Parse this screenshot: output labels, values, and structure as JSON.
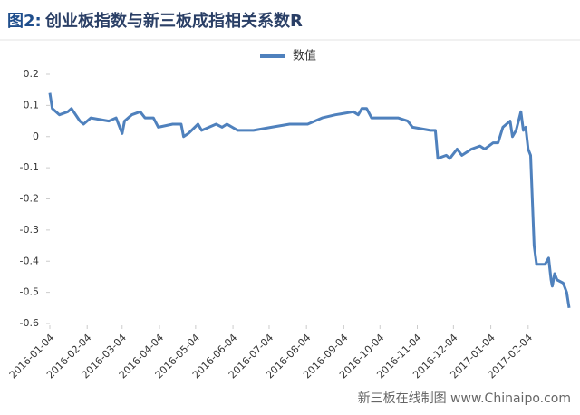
{
  "chart_data": {
    "type": "line",
    "figure_label": "图2:",
    "title": "创业板指数与新三板成指相关系数R",
    "source": "新三板在线制图 www.Chinaipo.com",
    "x": [
      "2016-01-04",
      "2016-01-06",
      "2016-01-12",
      "2016-01-19",
      "2016-01-22",
      "2016-01-29",
      "2016-02-01",
      "2016-02-07",
      "2016-02-22",
      "2016-02-28",
      "2016-03-04",
      "2016-03-06",
      "2016-03-12",
      "2016-03-19",
      "2016-03-23",
      "2016-03-30",
      "2016-04-03",
      "2016-04-15",
      "2016-04-22",
      "2016-04-24",
      "2016-04-28",
      "2016-05-06",
      "2016-05-09",
      "2016-05-21",
      "2016-05-26",
      "2016-05-30",
      "2016-06-08",
      "2016-06-21",
      "2016-07-06",
      "2016-07-21",
      "2016-08-05",
      "2016-08-17",
      "2016-08-28",
      "2016-09-12",
      "2016-09-16",
      "2016-09-19",
      "2016-09-23",
      "2016-09-27",
      "2016-10-19",
      "2016-10-27",
      "2016-10-31",
      "2016-11-15",
      "2016-11-19",
      "2016-11-21",
      "2016-11-28",
      "2016-12-01",
      "2016-12-07",
      "2016-12-11",
      "2016-12-19",
      "2016-12-26",
      "2016-12-30",
      "2017-01-06",
      "2017-01-10",
      "2017-01-14",
      "2017-01-20",
      "2017-01-22",
      "2017-01-25",
      "2017-01-29",
      "2017-01-31",
      "2017-02-02",
      "2017-02-04",
      "2017-02-06",
      "2017-02-09",
      "2017-02-11",
      "2017-02-18",
      "2017-02-21",
      "2017-02-23",
      "2017-02-24",
      "2017-02-26",
      "2017-02-28",
      "2017-03-05",
      "2017-03-08",
      "2017-03-10"
    ],
    "series": [
      {
        "name": "数值",
        "color": "#4f81bd",
        "values": [
          0.14,
          0.09,
          0.07,
          0.08,
          0.09,
          0.05,
          0.04,
          0.06,
          0.05,
          0.06,
          0.01,
          0.05,
          0.07,
          0.08,
          0.06,
          0.06,
          0.03,
          0.04,
          0.04,
          0.0,
          0.01,
          0.04,
          0.02,
          0.04,
          0.03,
          0.04,
          0.02,
          0.02,
          0.03,
          0.04,
          0.04,
          0.06,
          0.07,
          0.08,
          0.07,
          0.09,
          0.09,
          0.06,
          0.06,
          0.05,
          0.03,
          0.02,
          0.02,
          -0.07,
          -0.06,
          -0.07,
          -0.04,
          -0.06,
          -0.04,
          -0.03,
          -0.04,
          -0.02,
          -0.02,
          0.03,
          0.05,
          0.0,
          0.02,
          0.08,
          0.02,
          0.03,
          -0.04,
          -0.06,
          -0.35,
          -0.41,
          -0.41,
          -0.39,
          -0.46,
          -0.48,
          -0.44,
          -0.46,
          -0.47,
          -0.5,
          -0.55
        ]
      }
    ],
    "xlim": [
      "2016-01-04",
      "2017-03-10"
    ],
    "xticks": [
      "2016-01-04",
      "2016-02-04",
      "2016-03-04",
      "2016-04-04",
      "2016-05-04",
      "2016-06-04",
      "2016-07-04",
      "2016-08-04",
      "2016-09-04",
      "2016-10-04",
      "2016-11-04",
      "2016-12-04",
      "2017-01-04",
      "2017-02-04"
    ],
    "ylim": [
      -0.6,
      0.2
    ],
    "yticks": [
      0.2,
      0.1,
      0,
      -0.1,
      -0.2,
      -0.3,
      -0.4,
      -0.5,
      -0.6
    ],
    "legend": "top"
  }
}
